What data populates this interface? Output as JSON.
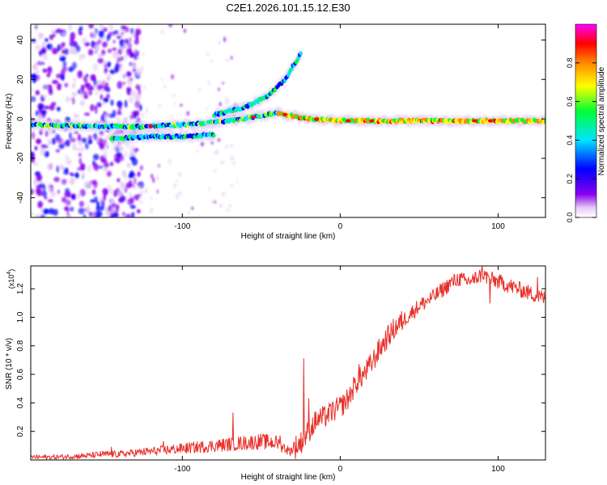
{
  "title": "C2E1.2026.101.15.12.E30",
  "chart_data": [
    {
      "type": "heatmap",
      "xlabel": "Height of straight line (km)",
      "ylabel": "Frequency (Hz)",
      "xlim": [
        -196,
        130
      ],
      "ylim": [
        -50,
        48
      ],
      "x_ticks": [
        -100,
        0,
        100
      ],
      "y_ticks": [
        -40,
        -20,
        0,
        20,
        40
      ],
      "colorbar": {
        "label": "Normalized spectral amplitude",
        "range": [
          0.0,
          1.0
        ],
        "ticks": [
          "0.0",
          "0.2",
          "0.4",
          "0.6",
          "0.8"
        ],
        "colors": [
          "#ffffff",
          "#e6ccf5",
          "#8800ee",
          "#0000ff",
          "#00e5ff",
          "#00ff33",
          "#ffff00",
          "#ff8800",
          "#ff0000",
          "#ff00ff"
        ]
      },
      "features": [
        {
          "name": "main band",
          "x": [
            -196,
            -130,
            -100,
            -70,
            -40,
            -20,
            0,
            50,
            100,
            130
          ],
          "y": [
            -3,
            -4,
            -3,
            -1,
            3,
            0,
            -1,
            -1,
            -1,
            -1
          ]
        },
        {
          "name": "rising branch",
          "x": [
            -80,
            -60,
            -45,
            -35,
            -25
          ],
          "y": [
            2,
            6,
            12,
            20,
            33
          ]
        },
        {
          "name": "lower branch",
          "x": [
            -145,
            -120,
            -100,
            -80
          ],
          "y": [
            -10,
            -9,
            -9,
            -8
          ]
        }
      ]
    },
    {
      "type": "line",
      "xlabel": "Height of straight line (km)",
      "ylabel": "SNR (10 * v/v)",
      "y_multiplier": "(x10^4)",
      "y_multiplier_base": "(x10",
      "y_multiplier_exp": "4",
      "xlim": [
        -196,
        130
      ],
      "ylim": [
        0.0,
        1.36
      ],
      "x_ticks": [
        -100,
        0,
        100
      ],
      "y_ticks": [
        0.2,
        0.4,
        0.6,
        0.8,
        1.0,
        1.2
      ],
      "series": [
        {
          "name": "SNR",
          "color": "#e8302a",
          "x": [
            -196,
            -180,
            -160,
            -150,
            -140,
            -120,
            -100,
            -80,
            -70,
            -60,
            -50,
            -40,
            -32,
            -25,
            -20,
            -15,
            -10,
            -5,
            0,
            5,
            10,
            15,
            20,
            25,
            30,
            35,
            40,
            50,
            60,
            70,
            75,
            80,
            85,
            90,
            95,
            100,
            110,
            120,
            130
          ],
          "y": [
            0.02,
            0.02,
            0.03,
            0.04,
            0.04,
            0.06,
            0.08,
            0.1,
            0.11,
            0.12,
            0.13,
            0.12,
            0.06,
            0.12,
            0.2,
            0.28,
            0.3,
            0.34,
            0.37,
            0.43,
            0.54,
            0.6,
            0.68,
            0.78,
            0.86,
            0.93,
            0.98,
            1.08,
            1.15,
            1.24,
            1.27,
            1.25,
            1.27,
            1.3,
            1.27,
            1.25,
            1.21,
            1.17,
            1.13
          ]
        }
      ],
      "spikes": [
        {
          "x": -145,
          "y": 0.09
        },
        {
          "x": -112,
          "y": 0.13
        },
        {
          "x": -68,
          "y": 0.33
        },
        {
          "x": -38,
          "y": 0.17
        },
        {
          "x": -23,
          "y": 0.71
        },
        {
          "x": -20,
          "y": 0.43
        },
        {
          "x": 12,
          "y": 0.67
        },
        {
          "x": 40,
          "y": 0.97
        },
        {
          "x": 85,
          "y": 1.24
        },
        {
          "x": 90,
          "y": 1.36
        },
        {
          "x": 95,
          "y": 1.1
        },
        {
          "x": 125,
          "y": 1.28
        }
      ]
    }
  ]
}
